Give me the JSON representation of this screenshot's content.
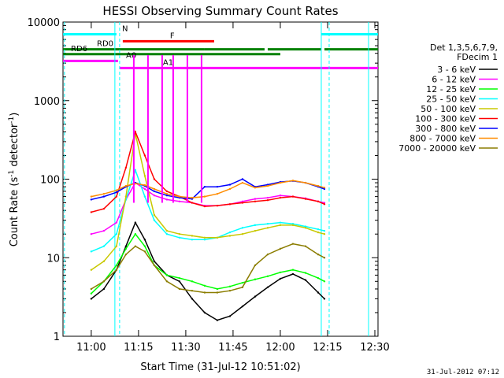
{
  "chart_data": {
    "type": "line",
    "title": "HESSI Observing Summary Count Rates",
    "xlabel": "Start Time (31-Jul-12 10:51:02)",
    "ylabel": "Count Rate (s⁻¹ detector⁻¹)",
    "ylabel_main": "Count Rate (s",
    "ylabel_sup": "-1",
    "ylabel_mid": " detector",
    "ylabel_sup2": "-1",
    "ylabel_end": ")",
    "y_scale": "log",
    "ylim": [
      1,
      10000
    ],
    "xlim": [
      "10:51:02",
      "12:31:00"
    ],
    "x_ticks": [
      "11:00",
      "11:15",
      "11:30",
      "11:45",
      "12:00",
      "12:15",
      "12:30"
    ],
    "y_ticks": [
      "1",
      "10",
      "100",
      "1000",
      "10000"
    ],
    "legend_header": [
      "Det 1,3,5,6,7,9,",
      "FDecim 1"
    ],
    "legend_position": "right",
    "series": [
      {
        "name": "3 - 6 keV",
        "color": "#000000",
        "x": [
          "11:00",
          "11:04",
          "11:08",
          "11:11",
          "11:14",
          "11:17",
          "11:20",
          "11:24",
          "11:28",
          "11:32",
          "11:36",
          "11:40",
          "11:44",
          "11:48",
          "11:52",
          "11:56",
          "12:00",
          "12:04",
          "12:08",
          "12:12",
          "12:14"
        ],
        "y": [
          3,
          4,
          7,
          14,
          28,
          17,
          9,
          6,
          5,
          3,
          2,
          1.6,
          1.8,
          2.4,
          3.2,
          4.2,
          5.4,
          6.2,
          5.2,
          3.6,
          3
        ]
      },
      {
        "name": "6 - 12 keV",
        "color": "#ff00ff",
        "x": [
          "11:00",
          "11:04",
          "11:08",
          "11:11",
          "11:14",
          "11:17",
          "11:20",
          "11:24",
          "11:28",
          "11:32",
          "11:36",
          "11:40",
          "11:44",
          "11:48",
          "11:52",
          "11:56",
          "12:00",
          "12:04",
          "12:08",
          "12:12",
          "12:14"
        ],
        "y": [
          20,
          22,
          28,
          55,
          90,
          75,
          62,
          55,
          52,
          50,
          46,
          46,
          48,
          52,
          56,
          58,
          62,
          60,
          57,
          52,
          50
        ]
      },
      {
        "name": "12 - 25 keV",
        "color": "#00ff00",
        "x": [
          "11:00",
          "11:04",
          "11:08",
          "11:11",
          "11:14",
          "11:17",
          "11:20",
          "11:24",
          "11:28",
          "11:32",
          "11:36",
          "11:40",
          "11:44",
          "11:48",
          "11:52",
          "11:56",
          "12:00",
          "12:04",
          "12:08",
          "12:12",
          "12:14"
        ],
        "y": [
          3.5,
          5,
          8,
          13,
          20,
          14,
          8,
          6,
          5.5,
          5,
          4.4,
          4,
          4.3,
          4.8,
          5.3,
          5.8,
          6.5,
          7,
          6.4,
          5.5,
          5
        ]
      },
      {
        "name": "25 - 50 keV",
        "color": "#00ffff",
        "x": [
          "11:00",
          "11:04",
          "11:08",
          "11:11",
          "11:14",
          "11:17",
          "11:20",
          "11:24",
          "11:28",
          "11:32",
          "11:36",
          "11:40",
          "11:44",
          "11:48",
          "11:52",
          "11:56",
          "12:00",
          "12:04",
          "12:08",
          "12:12",
          "12:14"
        ],
        "y": [
          12,
          14,
          20,
          55,
          130,
          60,
          30,
          20,
          18,
          17,
          17,
          18,
          21,
          24,
          26,
          27,
          28,
          27,
          25,
          23,
          22
        ]
      },
      {
        "name": "50 - 100 keV",
        "color": "#c8c800",
        "x": [
          "11:00",
          "11:04",
          "11:08",
          "11:11",
          "11:14",
          "11:17",
          "11:20",
          "11:24",
          "11:28",
          "11:32",
          "11:36",
          "11:40",
          "11:44",
          "11:48",
          "11:52",
          "11:56",
          "12:00",
          "12:04",
          "12:08",
          "12:12",
          "12:14"
        ],
        "y": [
          7,
          9,
          14,
          60,
          380,
          110,
          35,
          22,
          20,
          19,
          18,
          18,
          19,
          20,
          22,
          24,
          26,
          26,
          24,
          21,
          20
        ]
      },
      {
        "name": "100 - 300 keV",
        "color": "#ff0000",
        "x": [
          "11:00",
          "11:04",
          "11:08",
          "11:11",
          "11:14",
          "11:17",
          "11:20",
          "11:24",
          "11:28",
          "11:32",
          "11:36",
          "11:40",
          "11:44",
          "11:48",
          "11:52",
          "11:56",
          "12:00",
          "12:04",
          "12:08",
          "12:12",
          "12:14"
        ],
        "y": [
          38,
          42,
          60,
          140,
          400,
          200,
          100,
          70,
          60,
          50,
          45,
          46,
          48,
          50,
          52,
          54,
          58,
          60,
          56,
          52,
          48
        ]
      },
      {
        "name": "300 - 800 keV",
        "color": "#0000ff",
        "x": [
          "11:00",
          "11:04",
          "11:08",
          "11:11",
          "11:14",
          "11:17",
          "11:20",
          "11:24",
          "11:28",
          "11:32",
          "11:36",
          "11:40",
          "11:44",
          "11:48",
          "11:52",
          "11:56",
          "12:00",
          "12:04",
          "12:08",
          "12:12",
          "12:14"
        ],
        "y": [
          55,
          60,
          68,
          80,
          90,
          82,
          70,
          62,
          58,
          56,
          80,
          80,
          85,
          100,
          80,
          85,
          92,
          95,
          90,
          80,
          75
        ]
      },
      {
        "name": "800 - 7000 keV",
        "color": "#ff8c00",
        "x": [
          "11:00",
          "11:04",
          "11:08",
          "11:11",
          "11:14",
          "11:17",
          "11:20",
          "11:24",
          "11:28",
          "11:32",
          "11:36",
          "11:40",
          "11:44",
          "11:48",
          "11:52",
          "11:56",
          "12:00",
          "12:04",
          "12:08",
          "12:12",
          "12:14"
        ],
        "y": [
          60,
          65,
          72,
          82,
          88,
          84,
          75,
          65,
          60,
          58,
          60,
          65,
          75,
          90,
          78,
          82,
          90,
          96,
          90,
          82,
          78
        ]
      },
      {
        "name": "7000 - 20000 keV",
        "color": "#8b7d00",
        "x": [
          "11:00",
          "11:04",
          "11:08",
          "11:11",
          "11:14",
          "11:17",
          "11:20",
          "11:24",
          "11:28",
          "11:32",
          "11:36",
          "11:40",
          "11:44",
          "11:48",
          "11:52",
          "11:56",
          "12:00",
          "12:04",
          "12:08",
          "12:12",
          "12:14"
        ],
        "y": [
          4,
          5,
          7,
          11,
          14,
          12,
          8,
          5,
          4,
          3.8,
          3.6,
          3.6,
          3.8,
          4.2,
          8,
          11,
          13,
          15,
          14,
          11,
          10
        ]
      }
    ],
    "flag_lines": [
      {
        "name": "N",
        "color": "#00ffff",
        "segments": [
          [
            "10:51:02",
            "11:08:00"
          ],
          [
            "12:13:00",
            "12:31:00"
          ]
        ],
        "level": 7000
      },
      {
        "name": "F",
        "color": "#ff0000",
        "segments": [
          [
            "11:10:00",
            "11:39:00"
          ]
        ],
        "level": 5700
      },
      {
        "name": "RD0",
        "color": "#008000",
        "segments": [
          [
            "10:51:02",
            "11:36:00"
          ],
          [
            "11:36:00",
            "11:55:00"
          ],
          [
            "11:56:00",
            "12:13:00"
          ],
          [
            "12:14:00",
            "12:31:00"
          ]
        ],
        "level": 4500
      },
      {
        "name": "RD6",
        "color": "#008000",
        "segments": [
          [
            "10:51:02",
            "12:00:00"
          ]
        ],
        "level": 3900
      },
      {
        "name": "A0",
        "color": "#ff00ff",
        "segments": [
          [
            "10:51:02",
            "11:08:30"
          ]
        ],
        "level": 3200
      },
      {
        "name": "A1",
        "color": "#ff00ff",
        "segments": [
          [
            "11:09:00",
            "12:31:00"
          ]
        ],
        "level": 2600
      }
    ],
    "attenuator_spikes_keV": "6 - 12 keV",
    "footer_stamp": "31-Jul-2012 07:12"
  }
}
